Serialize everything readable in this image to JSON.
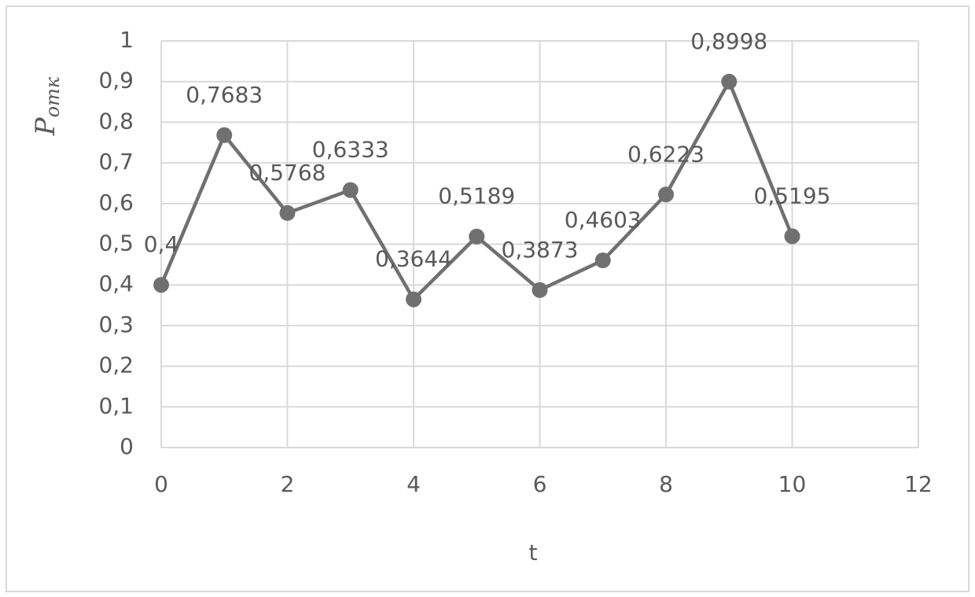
{
  "chart_data": {
    "type": "line",
    "xlabel": "t",
    "ylabel": "P",
    "ylabel_subscript": "отк",
    "x": [
      0,
      1,
      2,
      3,
      4,
      5,
      6,
      7,
      8,
      9,
      10
    ],
    "series": [
      {
        "color": "#707070",
        "values": [
          0.4,
          0.7683,
          0.5768,
          0.6333,
          0.3644,
          0.5189,
          0.3873,
          0.4603,
          0.6223,
          0.8998,
          0.5195
        ],
        "value_labels": [
          "0,4",
          "0,7683",
          "0,5768",
          "0,6333",
          "0,3644",
          "0,5189",
          "0,3873",
          "0,4603",
          "0,6223",
          "0,8998",
          "0,5195"
        ]
      }
    ],
    "xlim": [
      0,
      12
    ],
    "xticks": [
      0,
      2,
      4,
      6,
      8,
      10,
      12
    ],
    "ylim": [
      0,
      1
    ],
    "yticks": [
      0,
      {
        "value": 0.1,
        "label": "0,1"
      },
      {
        "value": 0.2,
        "label": "0,2"
      },
      {
        "value": 0.3,
        "label": "0,3"
      },
      {
        "value": 0.4,
        "label": "0,4"
      },
      {
        "value": 0.5,
        "label": "0,5"
      },
      {
        "value": 0.6,
        "label": "0,6"
      },
      {
        "value": 0.7,
        "label": "0,7"
      },
      {
        "value": 0.8,
        "label": "0,8"
      },
      {
        "value": 0.9,
        "label": "0,9"
      },
      1
    ],
    "grid": true
  }
}
